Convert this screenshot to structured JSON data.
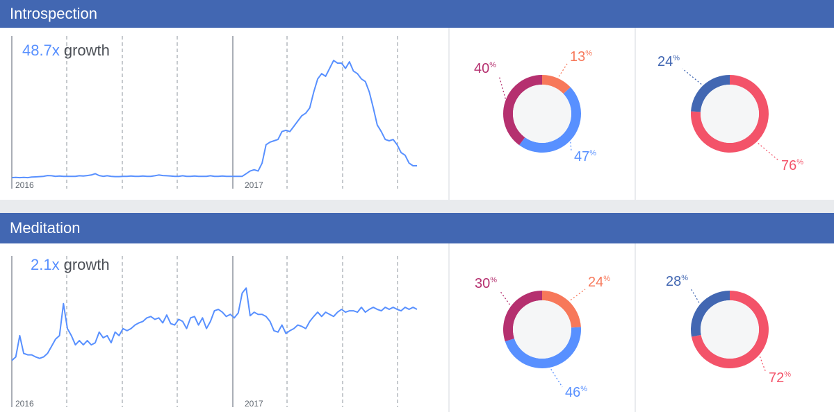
{
  "colors": {
    "header": "#4267b2",
    "line": "#5890ff",
    "blue": "#5890ff",
    "orange": "#f7785a",
    "purple": "#b5306f",
    "navy": "#4267b2",
    "red": "#f35369",
    "donut_center": "#f5f6f7"
  },
  "sections": [
    {
      "title": "Introspection",
      "growth_value": "48.7x",
      "growth_word": "growth",
      "year_labels": [
        "2016",
        "2017"
      ],
      "chart_data": {
        "type": "line",
        "x": [
          0,
          1,
          2,
          3,
          4,
          5,
          6,
          7,
          8,
          9,
          10,
          11,
          12,
          13,
          14,
          15,
          16,
          17,
          18,
          19,
          20,
          21,
          22,
          23,
          24,
          25,
          26,
          27,
          28,
          29,
          30,
          31,
          32,
          33,
          34,
          35,
          36,
          37,
          38,
          39,
          40,
          41,
          42,
          43,
          44,
          45,
          46,
          47,
          48,
          49,
          50,
          51,
          52,
          53,
          54,
          55,
          56,
          57,
          58,
          59,
          60,
          61,
          62,
          63,
          64,
          65,
          66,
          67,
          68,
          69,
          70,
          71,
          72,
          73,
          74,
          75,
          76,
          77,
          78,
          79,
          80,
          81,
          82,
          83,
          84,
          85,
          86,
          87,
          88,
          89,
          90,
          91,
          92,
          93,
          94,
          95,
          96,
          97,
          98,
          99,
          100,
          101,
          102
        ],
        "values": [
          0.5,
          0.6,
          0.5,
          0.6,
          0.5,
          0.7,
          0.8,
          0.9,
          1,
          1.3,
          1.2,
          1,
          1.1,
          1,
          1,
          1,
          1,
          1.2,
          1.1,
          1.3,
          1.5,
          2,
          1.3,
          1,
          1.2,
          1,
          0.9,
          0.9,
          1,
          1,
          1.1,
          1,
          1,
          1.1,
          1,
          1,
          1.2,
          1.5,
          1.3,
          1.2,
          1.1,
          1,
          1,
          1.2,
          1,
          1,
          1.1,
          1,
          1,
          1,
          1.2,
          1,
          1,
          1.1,
          1,
          1,
          1,
          1,
          1,
          2,
          3,
          3.5,
          3,
          6,
          13,
          14,
          14.5,
          15,
          18,
          18.5,
          18,
          20,
          22,
          24,
          25,
          27,
          33,
          38,
          40,
          39,
          42,
          45,
          44,
          44,
          42,
          44.5,
          41,
          40,
          38,
          37,
          33,
          27,
          20.5,
          18,
          15,
          14.5,
          15,
          13,
          10,
          9,
          6,
          5,
          5
        ],
        "ylim": [
          0,
          49
        ],
        "grid": "vertical dashed lines"
      },
      "donuts": [
        {
          "chart_data": {
            "type": "pie",
            "labels": [
              "13",
              "47",
              "40"
            ],
            "values": [
              13,
              47,
              40
            ],
            "colors": [
              "#f7785a",
              "#5890ff",
              "#b5306f"
            ]
          }
        },
        {
          "chart_data": {
            "type": "pie",
            "labels": [
              "76",
              "24"
            ],
            "values": [
              76,
              24
            ],
            "colors": [
              "#f35369",
              "#4267b2"
            ]
          }
        }
      ]
    },
    {
      "title": "Meditation",
      "growth_value": "2.1x",
      "growth_word": "growth",
      "year_labels": [
        "2016",
        "2017"
      ],
      "chart_data": {
        "type": "line",
        "x": [
          0,
          1,
          2,
          3,
          4,
          5,
          6,
          7,
          8,
          9,
          10,
          11,
          12,
          13,
          14,
          15,
          16,
          17,
          18,
          19,
          20,
          21,
          22,
          23,
          24,
          25,
          26,
          27,
          28,
          29,
          30,
          31,
          32,
          33,
          34,
          35,
          36,
          37,
          38,
          39,
          40,
          41,
          42,
          43,
          44,
          45,
          46,
          47,
          48,
          49,
          50,
          51,
          52,
          53,
          54,
          55,
          56,
          57,
          58,
          59,
          60,
          61,
          62,
          63,
          64,
          65,
          66,
          67,
          68,
          69,
          70,
          71,
          72,
          73,
          74,
          75,
          76,
          77,
          78,
          79,
          80,
          81,
          82,
          83,
          84,
          85,
          86,
          87,
          88,
          89,
          90,
          91,
          92,
          93,
          94,
          95,
          96,
          97,
          98,
          99,
          100,
          101,
          102
        ],
        "values": [
          1,
          1.05,
          1.35,
          1.1,
          1.08,
          1.08,
          1.05,
          1.03,
          1.05,
          1.1,
          1.2,
          1.3,
          1.35,
          1.8,
          1.45,
          1.35,
          1.22,
          1.28,
          1.22,
          1.28,
          1.22,
          1.25,
          1.4,
          1.32,
          1.35,
          1.25,
          1.4,
          1.35,
          1.45,
          1.42,
          1.45,
          1.5,
          1.53,
          1.55,
          1.6,
          1.62,
          1.58,
          1.6,
          1.53,
          1.64,
          1.52,
          1.5,
          1.58,
          1.55,
          1.45,
          1.6,
          1.62,
          1.5,
          1.6,
          1.45,
          1.55,
          1.7,
          1.72,
          1.68,
          1.62,
          1.65,
          1.6,
          1.67,
          1.95,
          2.02,
          1.63,
          1.68,
          1.65,
          1.65,
          1.62,
          1.55,
          1.42,
          1.4,
          1.5,
          1.38,
          1.42,
          1.45,
          1.5,
          1.48,
          1.45,
          1.55,
          1.62,
          1.68,
          1.62,
          1.68,
          1.65,
          1.62,
          1.68,
          1.72,
          1.68,
          1.7,
          1.7,
          1.68,
          1.75,
          1.68,
          1.72,
          1.75,
          1.72,
          1.7,
          1.75,
          1.72,
          1.75,
          1.72,
          1.7,
          1.75,
          1.72,
          1.75,
          1.72
        ],
        "ylim": [
          0.9,
          2.15
        ],
        "grid": "vertical dashed lines"
      },
      "donuts": [
        {
          "chart_data": {
            "type": "pie",
            "labels": [
              "24",
              "46",
              "30"
            ],
            "values": [
              24,
              46,
              30
            ],
            "colors": [
              "#f7785a",
              "#5890ff",
              "#b5306f"
            ]
          }
        },
        {
          "chart_data": {
            "type": "pie",
            "labels": [
              "72",
              "28"
            ],
            "values": [
              72,
              28
            ],
            "colors": [
              "#f35369",
              "#4267b2"
            ]
          }
        }
      ]
    }
  ]
}
